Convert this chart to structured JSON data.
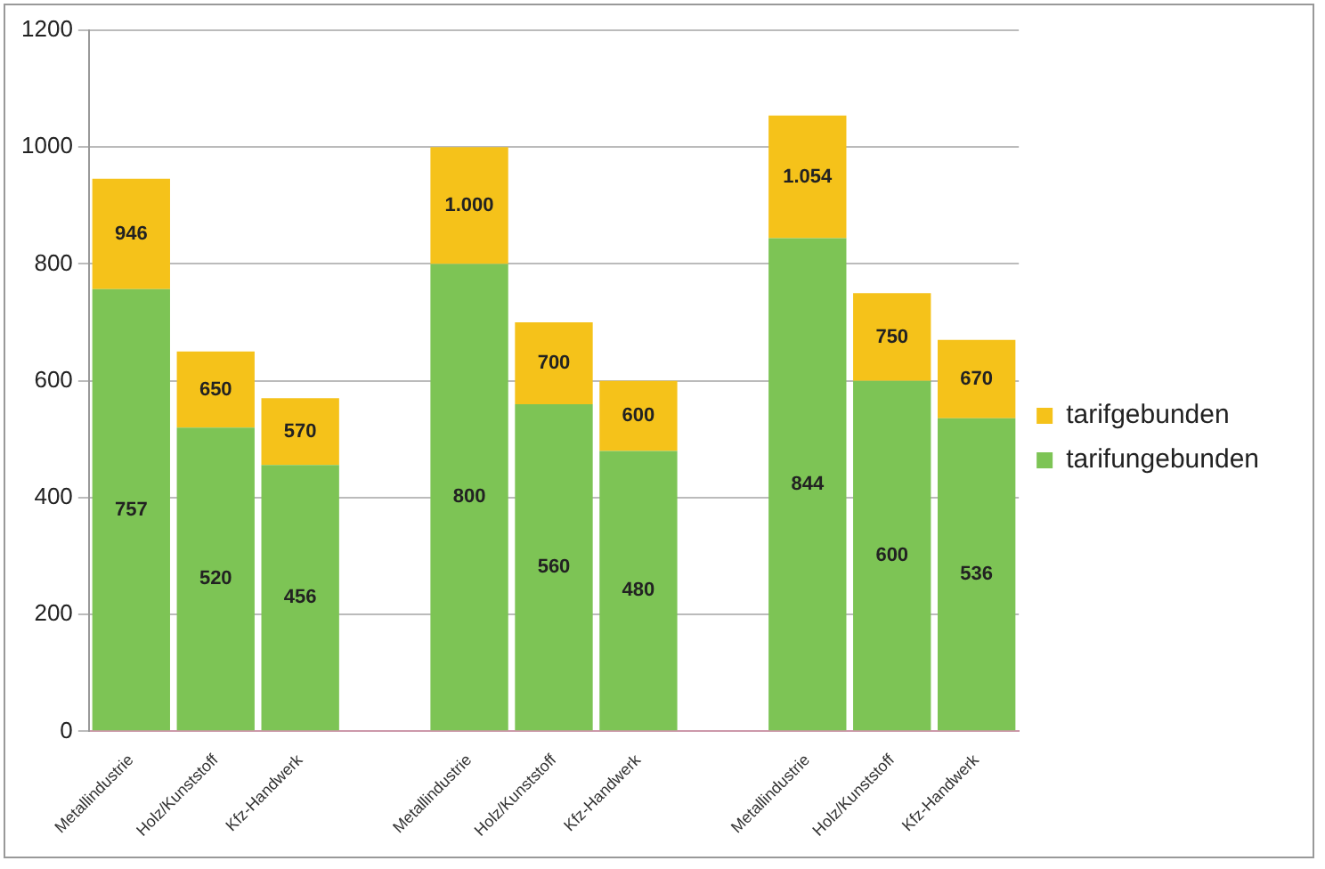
{
  "chart_data": {
    "type": "bar",
    "stacked": true,
    "categories": [
      "Metallindustrie",
      "Holz/Kunststoff",
      "Kfz-Handwerk",
      null,
      "Metallindustrie",
      "Holz/Kunststoff",
      "Kfz-Handwerk",
      null,
      "Metallindustrie",
      "Holz/Kunststoff",
      "Kfz-Handwerk"
    ],
    "series": [
      {
        "name": "tarifungebunden",
        "color": "#7dc455",
        "values": [
          757,
          520,
          456,
          null,
          800,
          560,
          480,
          null,
          844,
          600,
          536
        ],
        "value_labels": [
          "757",
          "520",
          "456",
          null,
          "800",
          "560",
          "480",
          null,
          "844",
          "600",
          "536"
        ]
      },
      {
        "name": "tarifgebunden",
        "color": "#f5c21a",
        "values": [
          189,
          130,
          114,
          null,
          200,
          140,
          120,
          null,
          210,
          150,
          134
        ]
      }
    ],
    "totals": [
      "946",
      "650",
      "570",
      null,
      "1.000",
      "700",
      "600",
      null,
      "1.054",
      "750",
      "670"
    ],
    "ylim": [
      0,
      1200
    ],
    "yticks": [
      0,
      200,
      400,
      600,
      800,
      {
        "value": 1000,
        "label": "1000"
      },
      {
        "value": 1200,
        "label": "1200"
      }
    ],
    "grid": "y",
    "legend": "right"
  }
}
